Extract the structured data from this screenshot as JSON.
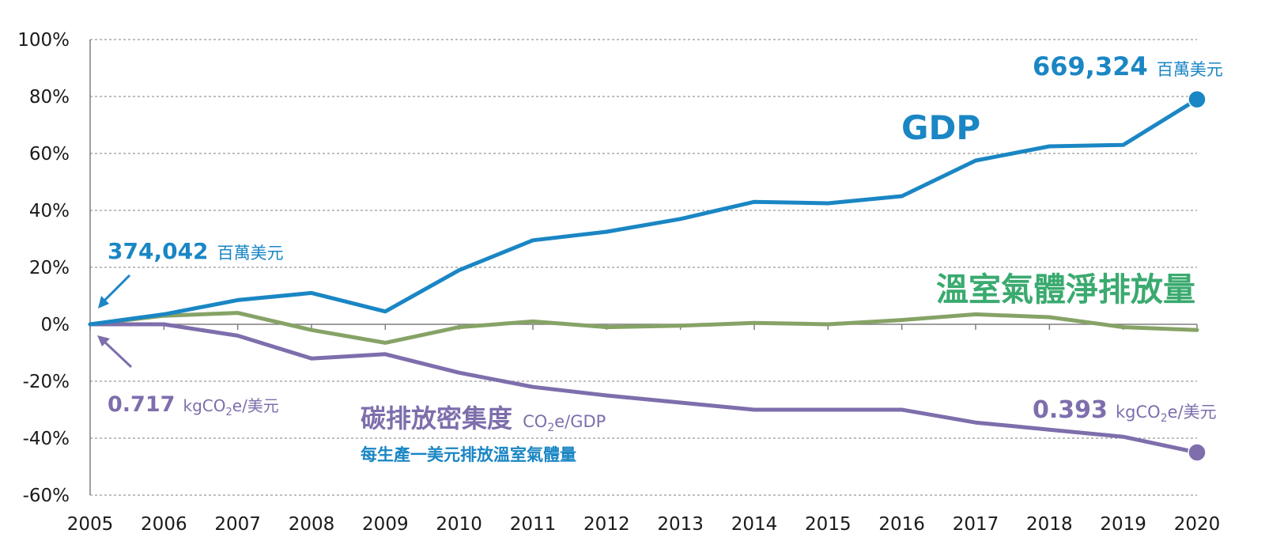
{
  "colors": {
    "gdp": "#1a86c4",
    "ghg": "#86a366",
    "ci": "#7e6eac",
    "ghg_label": "#3aaa6f"
  },
  "chart_data": {
    "type": "line",
    "x": [
      "2005",
      "2006",
      "2007",
      "2008",
      "2009",
      "2010",
      "2011",
      "2012",
      "2013",
      "2014",
      "2015",
      "2016",
      "2017",
      "2018",
      "2019",
      "2020"
    ],
    "ylim": [
      -60,
      100
    ],
    "yticks": [
      "100%",
      "80%",
      "60%",
      "40%",
      "20%",
      "0%",
      "-20%",
      "-40%",
      "-60%"
    ],
    "grid": true,
    "series": [
      {
        "key": "gdp",
        "name": "GDP",
        "values": [
          0,
          3.5,
          8.5,
          11,
          4.5,
          19,
          29.5,
          32.5,
          37,
          43,
          42.5,
          45,
          57.5,
          62.5,
          63,
          79
        ]
      },
      {
        "key": "ghg",
        "name": "溫室氣體淨排放量",
        "values": [
          0,
          3,
          4,
          -2,
          -6.5,
          -1,
          1,
          -1,
          -0.5,
          0.5,
          0,
          1.5,
          3.5,
          2.5,
          -1,
          -2
        ]
      },
      {
        "key": "ci",
        "name": "碳排放密集度",
        "values": [
          0,
          0,
          -4,
          -12,
          -10.5,
          -17,
          -22,
          -25,
          -27.5,
          -30,
          -30,
          -30,
          -34.5,
          -37,
          -39.5,
          -45
        ]
      }
    ],
    "annotations": {
      "gdp_start": {
        "value": "374,042",
        "unit": "百萬美元"
      },
      "gdp_end": {
        "value": "669,324",
        "unit": "百萬美元"
      },
      "ci_start": {
        "value": "0.717",
        "unit_pre": "kgCO",
        "unit_sub": "2",
        "unit_post": "e/美元"
      },
      "ci_end": {
        "value": "0.393",
        "unit_pre": "kgCO",
        "unit_sub": "2",
        "unit_post": "e/美元"
      },
      "ci_suffix": {
        "pre": "CO",
        "sub": "2",
        "post": "e/GDP"
      },
      "ci_desc": "每生產一美元排放溫室氣體量"
    }
  }
}
